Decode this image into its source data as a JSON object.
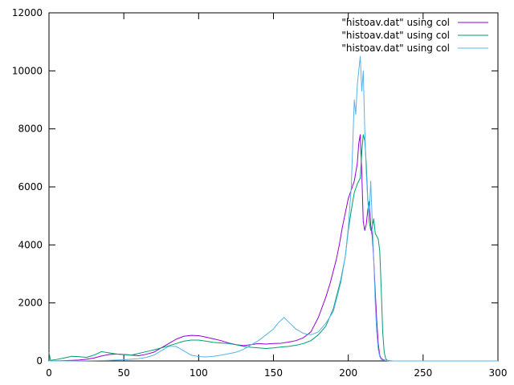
{
  "chart_data": {
    "type": "line",
    "title": "",
    "xlabel": "",
    "ylabel": "",
    "xlim": [
      0,
      300
    ],
    "ylim": [
      0,
      12000
    ],
    "xticks": [
      0,
      50,
      100,
      150,
      200,
      250,
      300
    ],
    "yticks": [
      0,
      2000,
      4000,
      6000,
      8000,
      10000,
      12000
    ],
    "xtick_labels": [
      "0",
      "50",
      "100",
      "150",
      "200",
      "250",
      "300"
    ],
    "ytick_labels": [
      "0",
      "2000",
      "4000",
      "6000",
      "8000",
      "10000",
      "12000"
    ],
    "grid": false,
    "legend_position": "top-right",
    "series": [
      {
        "name": "\"histoav.dat\" using col",
        "color": "#9400d3",
        "x": [
          0,
          10,
          20,
          25,
          30,
          35,
          40,
          45,
          50,
          55,
          60,
          65,
          70,
          75,
          80,
          85,
          90,
          95,
          100,
          105,
          110,
          115,
          120,
          125,
          130,
          135,
          140,
          145,
          150,
          155,
          160,
          165,
          170,
          175,
          180,
          185,
          188,
          190,
          192,
          194,
          196,
          198,
          200,
          202,
          204,
          206,
          207,
          208,
          209,
          210,
          211,
          212,
          213,
          214,
          215,
          216,
          217,
          218,
          219,
          220,
          221,
          222,
          224,
          226,
          228,
          230,
          240,
          260,
          300
        ],
        "y": [
          0,
          10,
          30,
          60,
          100,
          170,
          220,
          240,
          220,
          200,
          180,
          230,
          300,
          450,
          600,
          750,
          850,
          880,
          870,
          820,
          760,
          700,
          620,
          560,
          530,
          560,
          600,
          580,
          600,
          610,
          650,
          700,
          800,
          1000,
          1500,
          2200,
          2700,
          3100,
          3500,
          4000,
          4600,
          5100,
          5600,
          5900,
          6200,
          6800,
          7500,
          7800,
          6500,
          4800,
          4500,
          4700,
          5200,
          5500,
          4700,
          4300,
          3500,
          2400,
          1400,
          600,
          200,
          80,
          30,
          10,
          5,
          0,
          0,
          0,
          0
        ]
      },
      {
        "name": "\"histoav.dat\" using col",
        "color": "#009e73",
        "x": [
          0,
          1,
          5,
          10,
          15,
          20,
          25,
          30,
          35,
          40,
          45,
          50,
          55,
          60,
          65,
          70,
          75,
          80,
          85,
          90,
          95,
          100,
          105,
          110,
          115,
          120,
          125,
          130,
          135,
          140,
          145,
          150,
          155,
          160,
          165,
          170,
          175,
          180,
          185,
          190,
          195,
          198,
          200,
          202,
          204,
          206,
          208,
          209,
          210,
          211,
          212,
          213,
          214,
          215,
          216,
          217,
          218,
          219,
          220,
          221,
          222,
          223,
          224,
          225,
          226,
          228,
          230,
          240,
          260,
          300
        ],
        "y": [
          300,
          20,
          50,
          100,
          160,
          150,
          120,
          200,
          320,
          280,
          240,
          220,
          200,
          260,
          320,
          380,
          450,
          520,
          600,
          680,
          720,
          720,
          680,
          640,
          620,
          600,
          560,
          500,
          470,
          450,
          430,
          450,
          480,
          500,
          540,
          600,
          700,
          900,
          1200,
          1800,
          2800,
          3600,
          4500,
          5200,
          5800,
          6100,
          6300,
          7200,
          7800,
          7600,
          6800,
          5600,
          4800,
          4500,
          4600,
          4900,
          4400,
          4300,
          4200,
          3800,
          2500,
          1000,
          300,
          80,
          20,
          5,
          0,
          0,
          0,
          0
        ]
      },
      {
        "name": "\"histoav.dat\" using col",
        "color": "#56b4e9",
        "x": [
          0,
          10,
          20,
          30,
          40,
          50,
          55,
          60,
          65,
          70,
          75,
          80,
          85,
          90,
          95,
          100,
          105,
          110,
          115,
          120,
          125,
          130,
          135,
          140,
          145,
          150,
          153,
          155,
          157,
          160,
          163,
          165,
          170,
          175,
          180,
          185,
          190,
          195,
          198,
          200,
          202,
          203,
          204,
          205,
          206,
          207,
          208,
          209,
          210,
          211,
          212,
          213,
          214,
          215,
          216,
          217,
          218,
          219,
          220,
          221,
          222,
          224,
          226,
          230,
          240,
          260,
          300
        ],
        "y": [
          0,
          0,
          5,
          10,
          20,
          40,
          60,
          80,
          120,
          200,
          350,
          500,
          500,
          350,
          200,
          150,
          140,
          160,
          200,
          250,
          300,
          400,
          550,
          700,
          900,
          1100,
          1300,
          1400,
          1500,
          1350,
          1200,
          1100,
          950,
          900,
          1000,
          1300,
          1700,
          2700,
          3600,
          4600,
          6000,
          7500,
          9000,
          8500,
          9500,
          10000,
          10500,
          9300,
          10000,
          8000,
          6500,
          5500,
          5000,
          6200,
          4800,
          3500,
          2000,
          1000,
          400,
          150,
          50,
          20,
          10,
          0,
          0,
          0,
          0
        ]
      }
    ]
  }
}
